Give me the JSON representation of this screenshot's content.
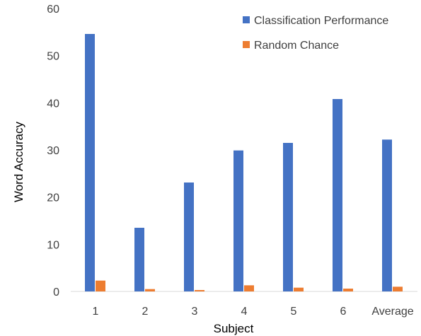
{
  "chart_data": {
    "type": "bar",
    "title": "",
    "xlabel": "Subject",
    "ylabel": "Word Accuracy",
    "categories": [
      "1",
      "2",
      "3",
      "4",
      "5",
      "6",
      "Average"
    ],
    "series": [
      {
        "name": "Classification Performance",
        "color": "#4472C4",
        "values": [
          54.6,
          13.5,
          23.1,
          29.9,
          31.5,
          40.8,
          32.2
        ]
      },
      {
        "name": "Random Chance",
        "color": "#ED7D31",
        "values": [
          2.3,
          0.5,
          0.3,
          1.3,
          0.8,
          0.6,
          1.0
        ]
      }
    ],
    "ylim": [
      0,
      60
    ],
    "yticks": [
      "0",
      "10",
      "20",
      "30",
      "40",
      "50",
      "60"
    ],
    "grid": false,
    "legend_position": "top-right"
  }
}
